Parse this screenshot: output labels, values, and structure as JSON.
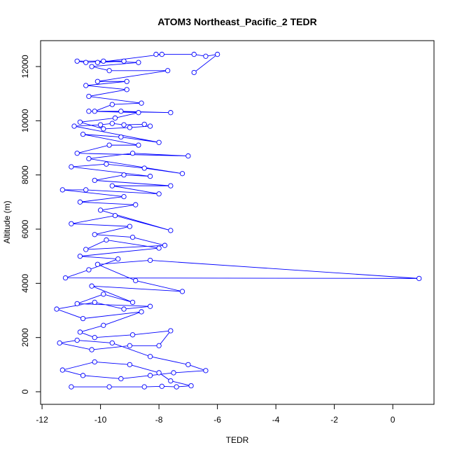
{
  "chart_data": {
    "type": "line",
    "title": "ATOM3 Northeast_Pacific_2 TEDR",
    "x_label": "TEDR",
    "y_label": "Altitude (m)",
    "x": [
      -11.0,
      -9.7,
      -8.5,
      -7.9,
      -7.4,
      -6.9,
      -7.6,
      -8.0,
      -9.0,
      -10.2,
      -11.3,
      -10.6,
      -9.3,
      -8.3,
      -7.5,
      -6.4,
      -7.0,
      -8.3,
      -9.6,
      -10.8,
      -11.4,
      -10.3,
      -9.0,
      -8.0,
      -7.6,
      -8.9,
      -10.2,
      -10.7,
      -9.9,
      -8.6,
      -10.6,
      -11.5,
      -10.2,
      -9.2,
      -8.3,
      -10.8,
      -9.9,
      -8.9,
      -10.3,
      -7.2,
      -8.8,
      -10.1,
      -8.3,
      0.9,
      -11.2,
      -10.4,
      -9.4,
      -10.7,
      -8.0,
      -9.8,
      -10.5,
      -7.8,
      -8.9,
      -10.2,
      -9.0,
      -11.0,
      -9.5,
      -7.6,
      -10.0,
      -8.8,
      -10.7,
      -9.2,
      -11.3,
      -10.5,
      -8.0,
      -9.6,
      -7.6,
      -10.2,
      -9.2,
      -8.3,
      -11.0,
      -9.8,
      -8.5,
      -7.2,
      -10.4,
      -8.9,
      -7.0,
      -10.8,
      -9.7,
      -8.7,
      -10.6,
      -9.3,
      -8.0,
      -10.9,
      -10.0,
      -9.6,
      -9.2,
      -8.5,
      -8.3,
      -9.0,
      -9.9,
      -10.7,
      -9.5,
      -8.7,
      -10.4,
      -9.3,
      -7.6,
      -10.2,
      -9.6,
      -8.6,
      -10.4,
      -9.1,
      -10.5,
      -9.1,
      -10.1,
      -7.7,
      -9.7,
      -10.3,
      -8.7,
      -9.9,
      -10.5,
      -10.8,
      -9.2,
      -10.1,
      -7.9,
      -8.1,
      -6.8,
      -6.4,
      -6.0,
      -6.8
    ],
    "series": [
      {
        "color": "#0000ff",
        "values": [
          180,
          180,
          180,
          200,
          180,
          220,
          400,
          700,
          1000,
          1100,
          800,
          600,
          480,
          600,
          700,
          780,
          1000,
          1300,
          1800,
          1900,
          1800,
          1550,
          1700,
          1700,
          2250,
          2100,
          2000,
          2200,
          2450,
          2950,
          2700,
          3050,
          3300,
          3050,
          3150,
          3250,
          3600,
          3300,
          3900,
          3700,
          4100,
          4700,
          4850,
          4180,
          4200,
          4500,
          4900,
          5000,
          5300,
          5600,
          5250,
          5400,
          5700,
          5800,
          6100,
          6200,
          6500,
          5950,
          6700,
          6900,
          7000,
          7200,
          7450,
          7450,
          7300,
          7600,
          7600,
          7800,
          8000,
          7950,
          8300,
          8400,
          8250,
          8050,
          8600,
          8800,
          8700,
          8800,
          9100,
          9100,
          9500,
          9400,
          9200,
          9800,
          9850,
          9900,
          9850,
          9870,
          9800,
          9750,
          9700,
          9950,
          10100,
          10300,
          10350,
          10350,
          10300,
          10350,
          10600,
          10650,
          10900,
          11150,
          11300,
          11450,
          11450,
          11850,
          11850,
          12000,
          12150,
          12200,
          12150,
          12200,
          12200,
          12150,
          12450,
          12450,
          12450,
          12380,
          12450,
          11780
        ]
      }
    ],
    "xlim": [
      -12.05,
      1.41
    ],
    "ylim": [
      -465,
      12956
    ],
    "xticks": [
      -12,
      -10,
      -8,
      -6,
      -4,
      -2,
      0
    ],
    "yticks": [
      0,
      2000,
      4000,
      6000,
      8000,
      10000,
      12000
    ]
  }
}
